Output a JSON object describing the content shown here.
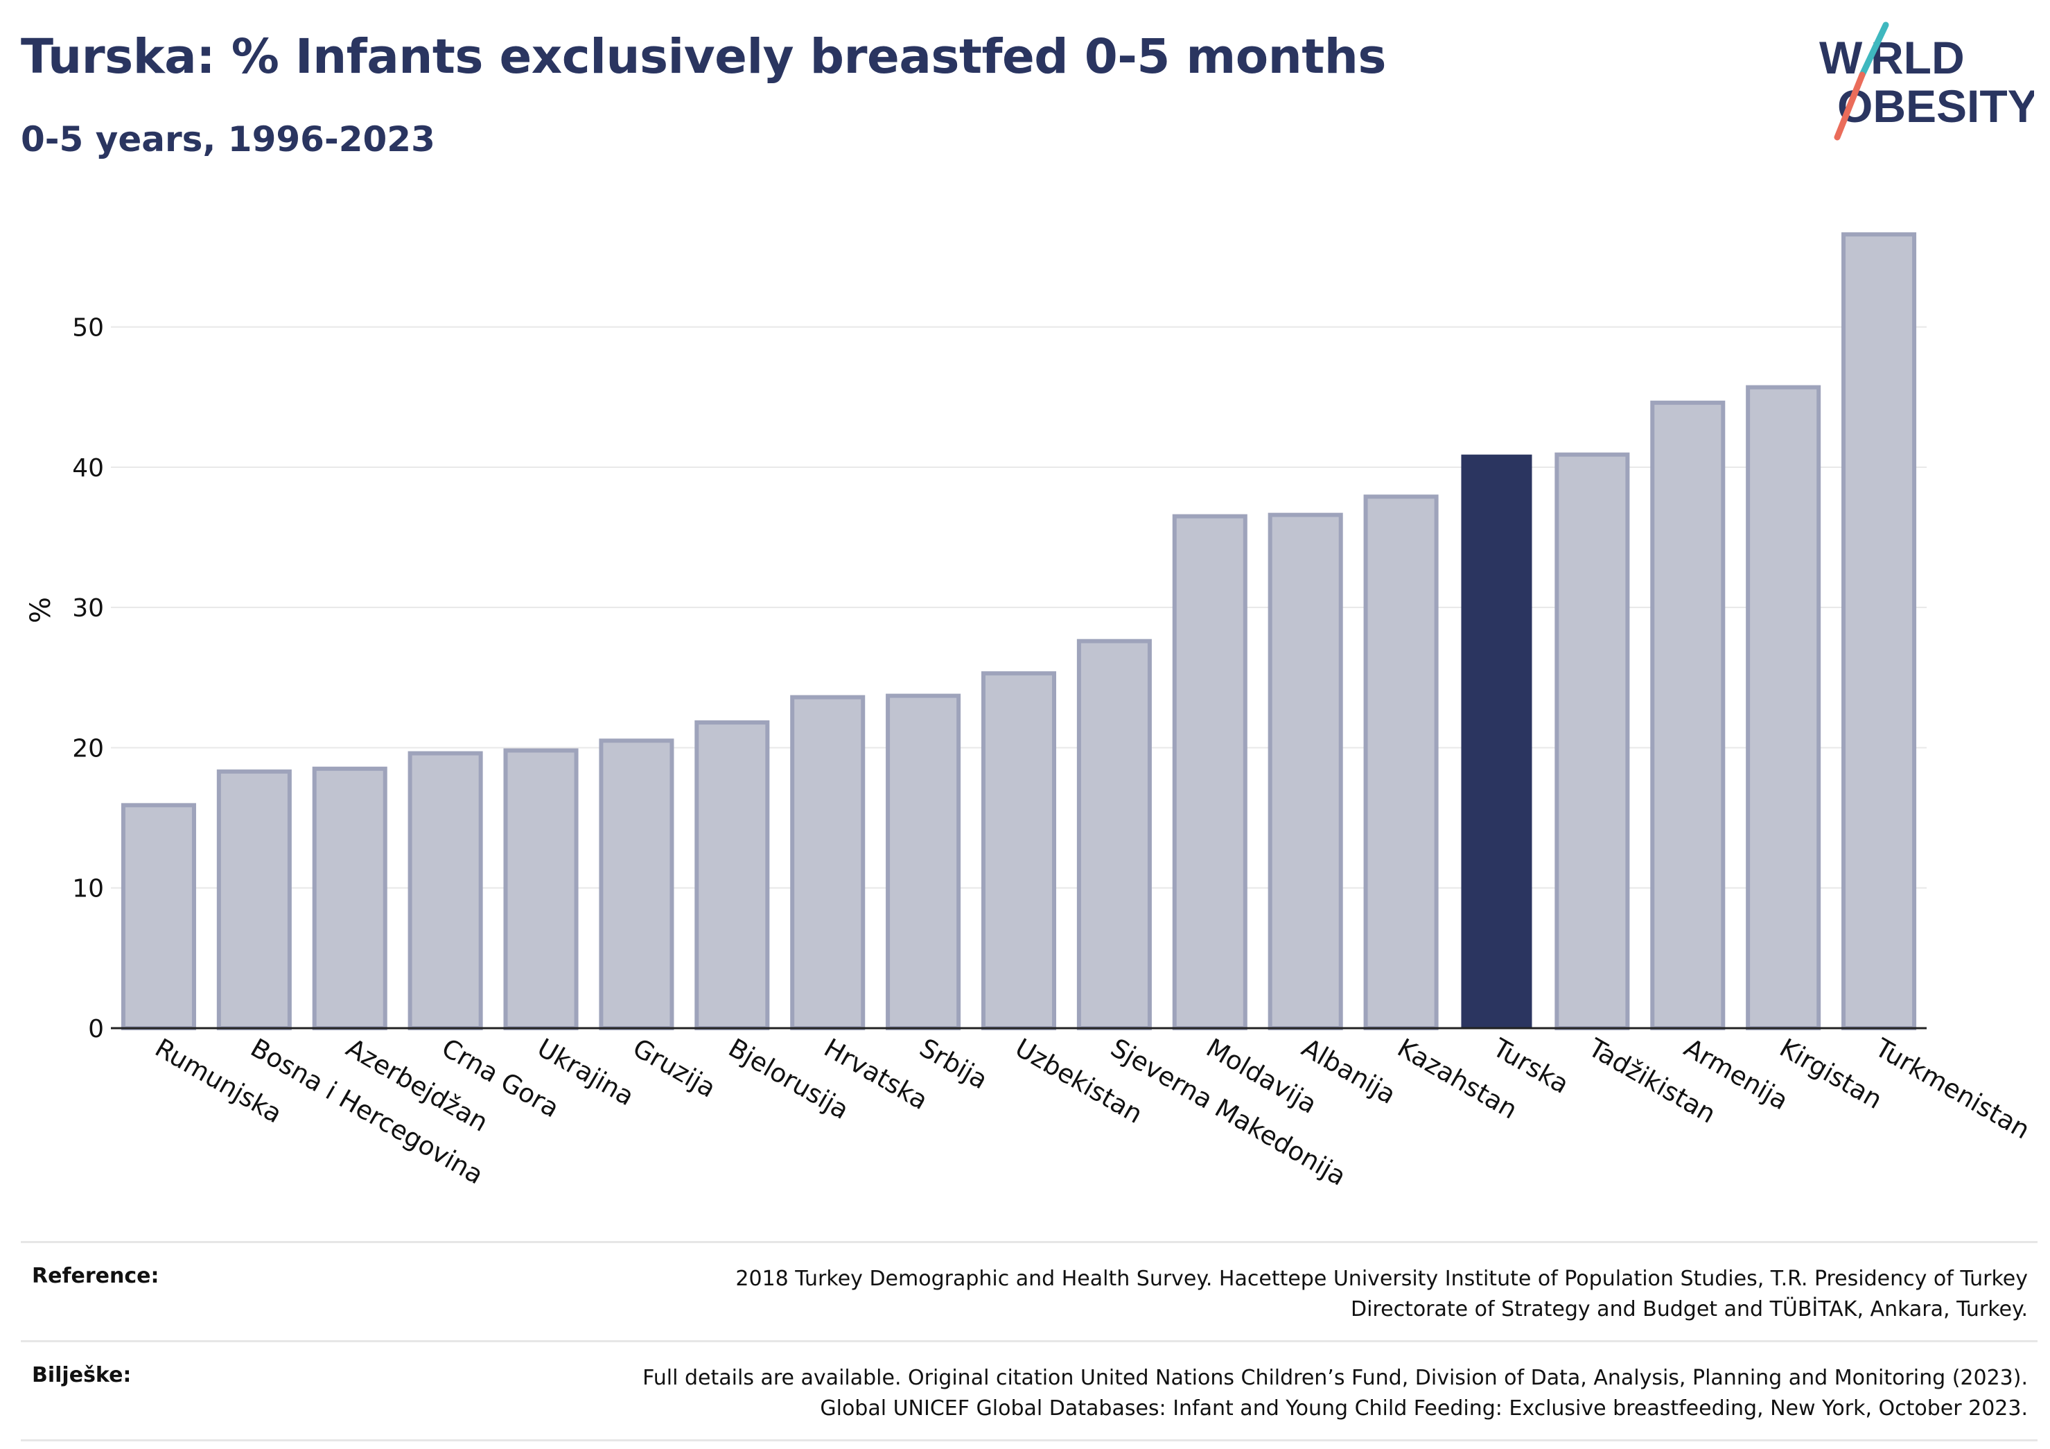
{
  "header": {
    "title": "Turska: % Infants exclusively breastfed 0-5 months",
    "subtitle": "0-5 years, 1996-2023",
    "logo_text": [
      "W",
      "RLD",
      "OBESITY"
    ]
  },
  "colors": {
    "highlight_bar": "#2b3560",
    "other_bar": "#c0c3d0",
    "other_bar_edge": "#9ea3bb",
    "text_dark": "#2a3560",
    "logo_teal": "#3fb8bf",
    "logo_coral": "#ea6c5a"
  },
  "chart_data": {
    "type": "bar",
    "ylabel": "%",
    "xlabel": "",
    "ylim": [
      0,
      57
    ],
    "yticks": [
      0,
      10,
      20,
      30,
      40,
      50
    ],
    "grid": true,
    "highlight": "Turska",
    "categories": [
      "Rumunjska",
      "Bosna i Hercegovina",
      "Azerbejdžan",
      "Crna Gora",
      "Ukrajina",
      "Gruzija",
      "Bjelorusija",
      "Hrvatska",
      "Srbija",
      "Uzbekistan",
      "Sjeverna Makedonija",
      "Moldavija",
      "Albanija",
      "Kazahstan",
      "Turska",
      "Tadžikistan",
      "Armenija",
      "Kirgistan",
      "Turkmenistan"
    ],
    "values": [
      15.9,
      18.3,
      18.5,
      19.6,
      19.8,
      20.5,
      21.8,
      23.6,
      23.7,
      25.3,
      27.6,
      36.5,
      36.6,
      37.9,
      40.9,
      40.9,
      44.6,
      45.7,
      56.6
    ]
  },
  "footer": {
    "reference_label": "Reference:",
    "reference_lines": [
      "2018 Turkey Demographic and Health Survey. Hacettepe University Institute of Population Studies, T.R. Presidency of Turkey",
      "Directorate of Strategy and Budget and TÜBİTAK, Ankara, Turkey."
    ],
    "notes_label": "Bilješke:",
    "notes_lines": [
      "Full details are available. Original citation United Nations Children’s Fund, Division of Data, Analysis, Planning and Monitoring (2023).",
      "Global UNICEF Global Databases: Infant and Young Child Feeding: Exclusive breastfeeding, New York, October 2023."
    ]
  }
}
